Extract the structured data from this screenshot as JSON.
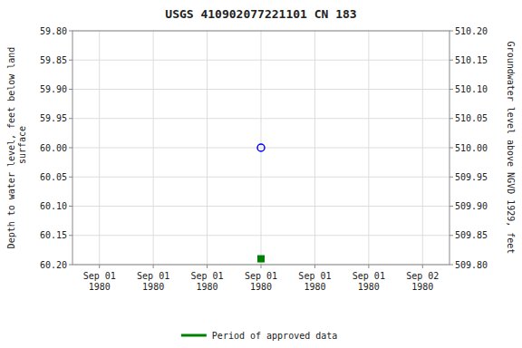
{
  "chart_data": {
    "type": "scatter",
    "title": "USGS 410902077221101 CN   183",
    "y_label": "Depth to water level, feet below land\n surface",
    "y2_label": "Groundwater level above NGVD 1929, feet",
    "categories": [
      "Sep 01\n1980",
      "Sep 01\n1980",
      "Sep 01\n1980",
      "Sep 01\n1980",
      "Sep 01\n1980",
      "Sep 01\n1980",
      "Sep 02\n1980"
    ],
    "series": [
      {
        "color": "blue",
        "marker": "open-circle",
        "values": [
          null,
          null,
          null,
          60.0,
          null,
          null,
          null
        ]
      },
      {
        "name": "Period of approved data",
        "color": "#008000",
        "marker": "square",
        "values": [
          null,
          null,
          null,
          60.19,
          null,
          null,
          null
        ]
      }
    ],
    "ylim": [
      60.2,
      59.8
    ],
    "yticks": [
      {
        "value": 59.8,
        "label": "59.80"
      },
      59.85,
      {
        "value": 59.9,
        "label": "59.90"
      },
      59.95,
      {
        "value": 60.0,
        "label": "60.00"
      },
      60.05,
      {
        "value": 60.1,
        "label": "60.10"
      },
      60.15,
      {
        "value": 60.2,
        "label": "60.20"
      }
    ],
    "y2lim": [
      509.8,
      510.2
    ],
    "y2ticks": [
      {
        "value": 510.2,
        "label": "510.20"
      },
      510.15,
      {
        "value": 510.1,
        "label": "510.10"
      },
      510.05,
      {
        "value": 510.0,
        "label": "510.00"
      },
      509.95,
      {
        "value": 509.9,
        "label": "509.90"
      },
      509.85,
      {
        "value": 509.8,
        "label": "509.80"
      }
    ],
    "grid": true,
    "legend": "bottom"
  }
}
